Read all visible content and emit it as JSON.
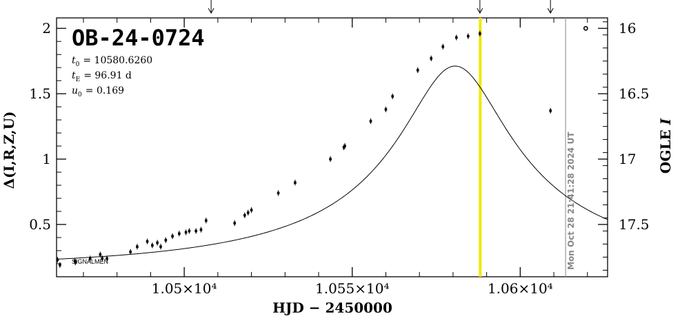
{
  "chart_data": {
    "type": "scatter",
    "title": "OB-24-0724",
    "params": [
      {
        "name": "t",
        "sub": "0",
        "value": "= 10580.6260"
      },
      {
        "name": "t",
        "sub": "E",
        "value": "= 96.91 d"
      },
      {
        "name": "u",
        "sub": "0",
        "value": "= 0.169"
      }
    ],
    "xlabel": "HJD − 2450000",
    "ylabel_left": "Δ(I,R,Z,U)",
    "ylabel_right_main": "OGLE ",
    "ylabel_right_italic": "I",
    "xlim": [
      10462,
      10626
    ],
    "ylim_left": [
      0.1,
      2.08
    ],
    "x_ticks": [
      {
        "value": 10500,
        "label": "1.05×10⁴"
      },
      {
        "value": 10550,
        "label": "1.055×10⁴"
      },
      {
        "value": 10600,
        "label": "1.06×10⁴"
      }
    ],
    "y_ticks_left": [
      {
        "value": 0.5,
        "label": "0.5"
      },
      {
        "value": 1,
        "label": "1"
      },
      {
        "value": 1.5,
        "label": "1.5"
      },
      {
        "value": 2,
        "label": "2"
      }
    ],
    "y_ticks_right": [
      {
        "value": 16,
        "label": "16"
      },
      {
        "value": 16.5,
        "label": "16.5"
      },
      {
        "value": 17,
        "label": "17"
      },
      {
        "value": 17.5,
        "label": "17.5"
      }
    ],
    "right_axis_map": {
      "mag_at_2": 16.0,
      "mag_at_0_5": 17.5
    },
    "signalmen_label": "SIGNALMEN",
    "current_time": 10588.1,
    "now_line": {
      "x": 10613.5,
      "label": "Mon Oct 28 21:41:28 2024 UT"
    },
    "top_arrows": [
      10508,
      10588,
      10609
    ],
    "model": {
      "t0": 10580.626,
      "tE": 96.91,
      "u0": 0.169,
      "base": 0.168,
      "scale": 0.31
    },
    "points": [
      [
        10462.3,
        0.23
      ],
      [
        10463.0,
        0.19
      ],
      [
        10467.5,
        0.22
      ],
      [
        10467.6,
        0.21
      ],
      [
        10472.0,
        0.24
      ],
      [
        10475.0,
        0.27
      ],
      [
        10475.6,
        0.24
      ],
      [
        10477.0,
        0.24
      ],
      [
        10484.0,
        0.29
      ],
      [
        10486.0,
        0.33
      ],
      [
        10489.0,
        0.37
      ],
      [
        10490.5,
        0.34
      ],
      [
        10492.0,
        0.36
      ],
      [
        10493.0,
        0.33
      ],
      [
        10494.5,
        0.38
      ],
      [
        10496.5,
        0.41
      ],
      [
        10498.5,
        0.43
      ],
      [
        10500.5,
        0.44
      ],
      [
        10501.5,
        0.45
      ],
      [
        10503.5,
        0.45
      ],
      [
        10505.0,
        0.46
      ],
      [
        10506.5,
        0.53
      ],
      [
        10515.0,
        0.51
      ],
      [
        10518.0,
        0.57
      ],
      [
        10519.0,
        0.59
      ],
      [
        10520.0,
        0.61
      ],
      [
        10528.0,
        0.74
      ],
      [
        10533.0,
        0.82
      ],
      [
        10543.5,
        1.0
      ],
      [
        10547.5,
        1.09
      ],
      [
        10547.8,
        1.1
      ],
      [
        10555.5,
        1.29
      ],
      [
        10560.0,
        1.38
      ],
      [
        10562.0,
        1.48
      ],
      [
        10569.5,
        1.68
      ],
      [
        10573.5,
        1.77
      ],
      [
        10577.0,
        1.86
      ],
      [
        10581.0,
        1.93
      ],
      [
        10584.5,
        1.94
      ],
      [
        10588.0,
        1.96
      ],
      [
        10609.0,
        1.37
      ]
    ],
    "open_points": [
      [
        10619.5,
        2.0
      ]
    ]
  }
}
